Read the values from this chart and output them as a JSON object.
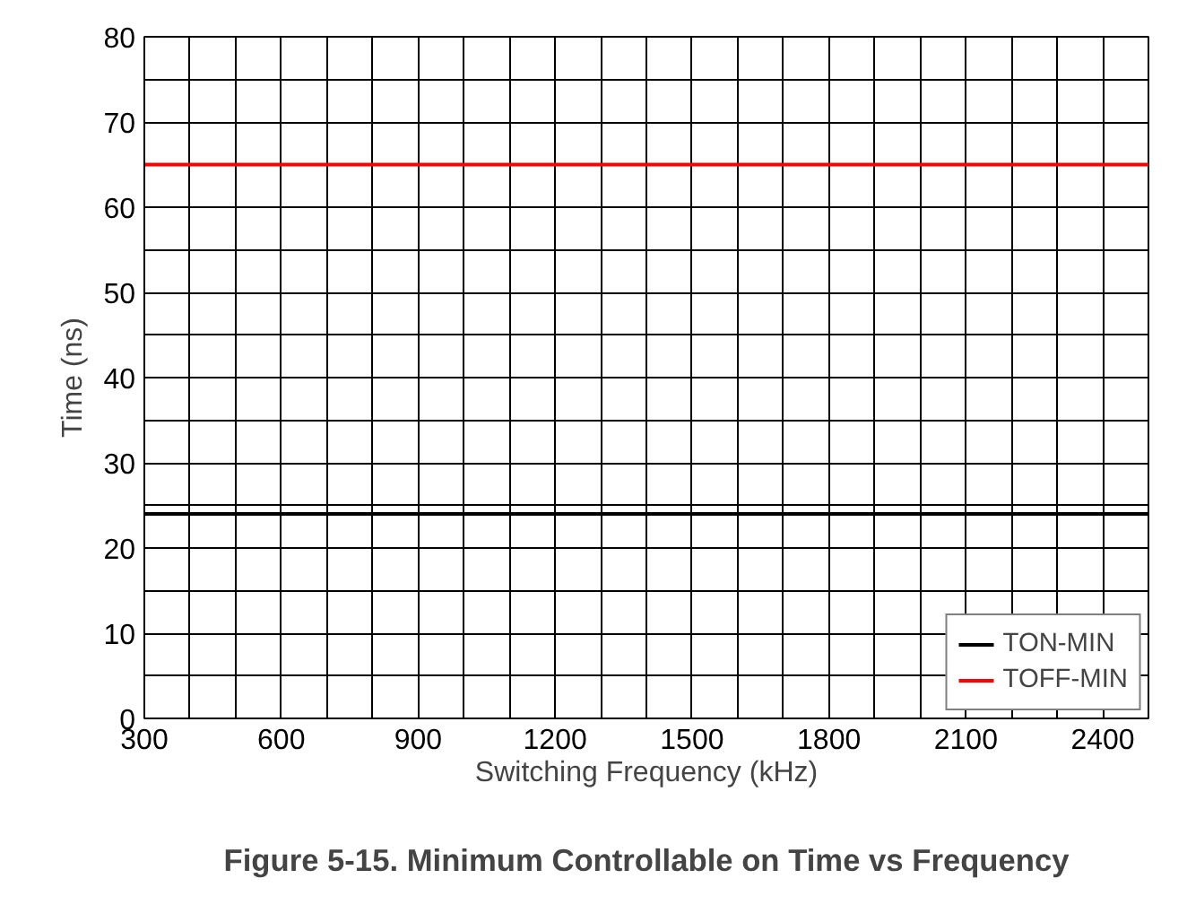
{
  "chart_data": {
    "type": "line",
    "title": "Figure 5-15. Minimum Controllable on Time vs Frequency",
    "xlabel": "Switching Frequency (kHz)",
    "ylabel": "Time (ns)",
    "x": [
      300,
      2500
    ],
    "series": [
      {
        "name": "TON-MIN",
        "color": "#000000",
        "values": [
          24,
          24
        ]
      },
      {
        "name": "TOFF-MIN",
        "color": "#ff0000",
        "values": [
          65,
          65
        ]
      }
    ],
    "xlim": [
      300,
      2500
    ],
    "ylim": [
      0,
      80
    ],
    "xticks": [
      300,
      {
        "value": 400,
        "label": null
      },
      {
        "value": 500,
        "label": null
      },
      600,
      {
        "value": 700,
        "label": null
      },
      {
        "value": 800,
        "label": null
      },
      900,
      {
        "value": 1000,
        "label": null
      },
      {
        "value": 1100,
        "label": null
      },
      1200,
      {
        "value": 1300,
        "label": null
      },
      {
        "value": 1400,
        "label": null
      },
      1500,
      {
        "value": 1600,
        "label": null
      },
      {
        "value": 1700,
        "label": null
      },
      1800,
      {
        "value": 1900,
        "label": null
      },
      {
        "value": 2000,
        "label": null
      },
      2100,
      {
        "value": 2200,
        "label": null
      },
      {
        "value": 2300,
        "label": null
      },
      2400,
      {
        "value": 2500,
        "label": null
      }
    ],
    "yticks": [
      0,
      {
        "value": 5,
        "label": null
      },
      10,
      {
        "value": 15,
        "label": null
      },
      20,
      {
        "value": 25,
        "label": null
      },
      30,
      {
        "value": 35,
        "label": null
      },
      40,
      {
        "value": 45,
        "label": null
      },
      50,
      {
        "value": 55,
        "label": null
      },
      60,
      {
        "value": 65,
        "label": null
      },
      70,
      {
        "value": 75,
        "label": null
      },
      80
    ],
    "grid": true,
    "legend": "bottom right",
    "line_style": "solid"
  }
}
